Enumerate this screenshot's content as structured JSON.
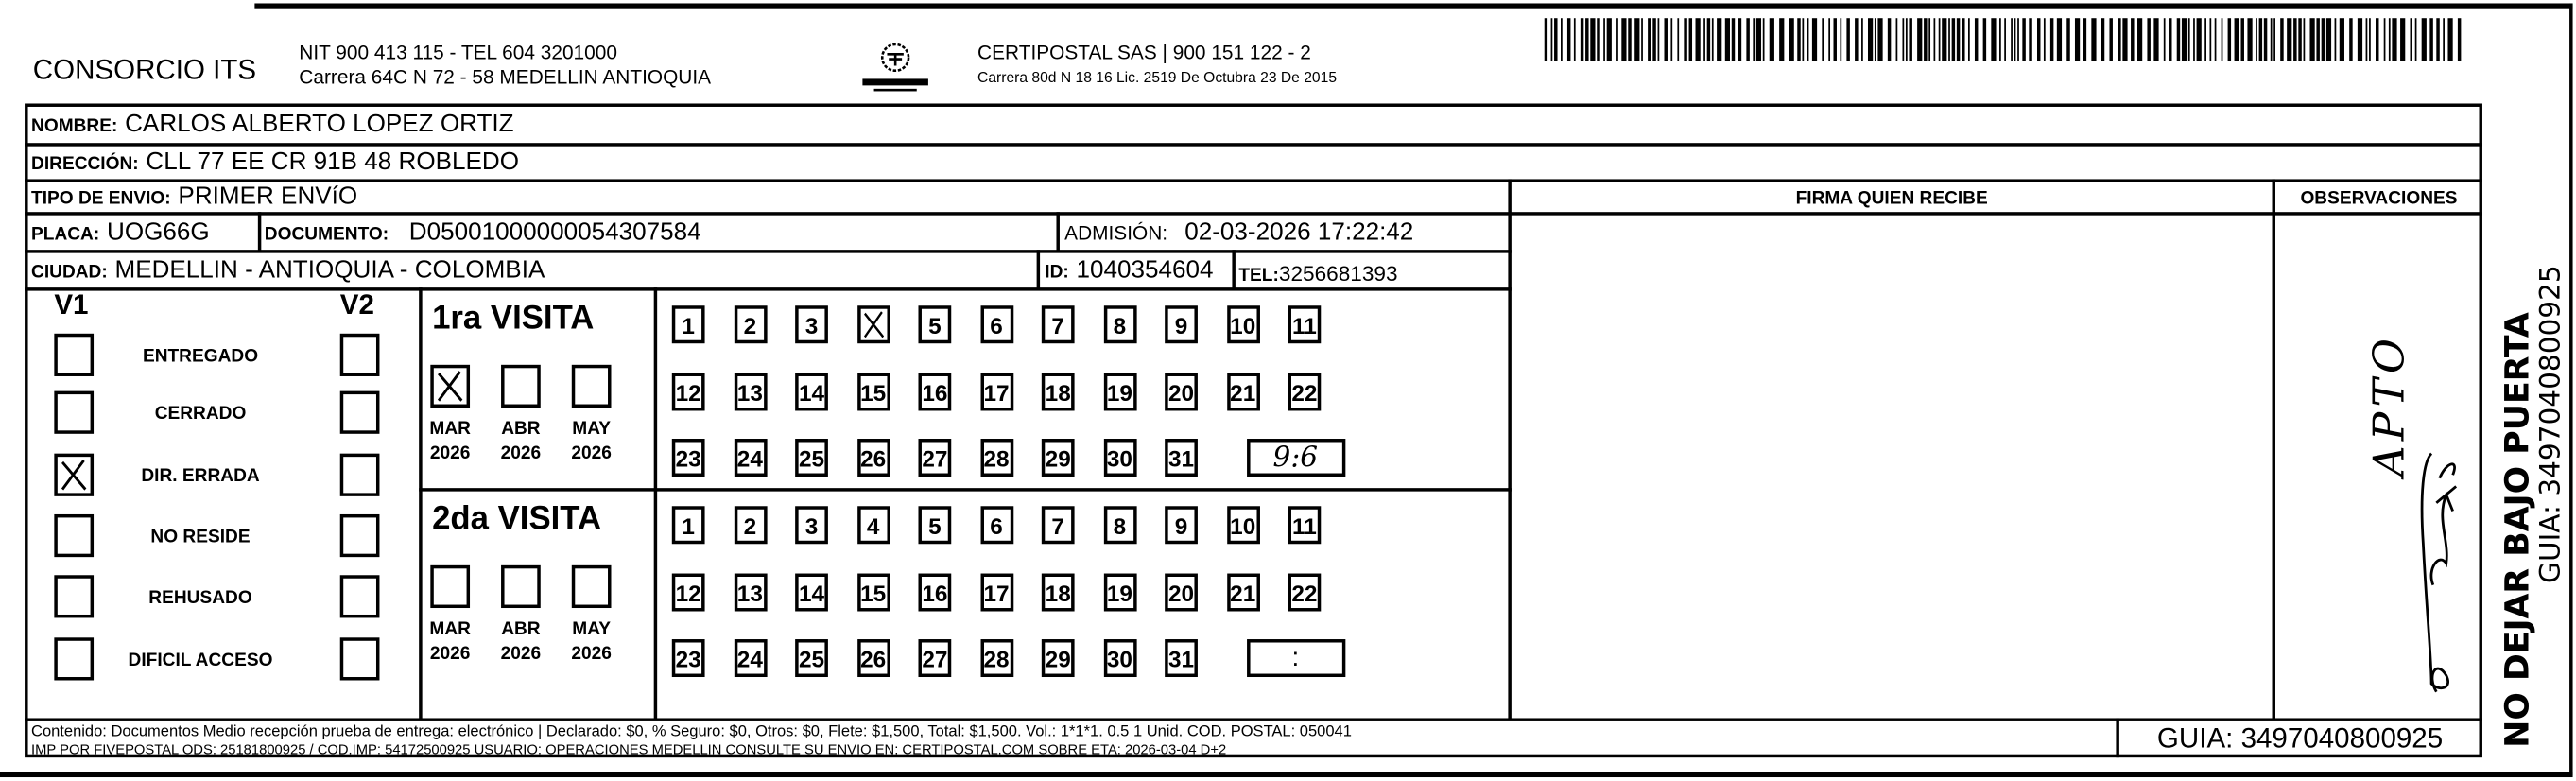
{
  "header": {
    "company": "CONSORCIO ITS",
    "company_line1": "NIT 900 413 115 - TEL 604 3201000",
    "company_line2": "Carrera 64C N 72 - 58 MEDELLIN ANTIOQUIA",
    "logo_text": "CERTIPOSTAL",
    "carrier_line1": "CERTIPOSTAL SAS | 900 151 122 - 2",
    "carrier_line2": "Carrera 80d N 18 16  Lic. 2519 De Octubra 23 De 2015"
  },
  "fields": {
    "nombre_label": "NOMBRE:",
    "nombre": "CARLOS ALBERTO LOPEZ ORTIZ",
    "direccion_label": "DIRECCIÓN:",
    "direccion": "CLL 77 EE CR 91B 48 ROBLEDO",
    "tipo_label": "TIPO DE ENVIO:",
    "tipo": "PRIMER ENVíO",
    "placa_label": "PLACA:",
    "placa": "UOG66G",
    "documento_label": "DOCUMENTO:",
    "documento": "D05001000000054307584",
    "admision_label": "ADMISIÓN:",
    "admision": "02-03-2026 17:22:42",
    "ciudad_label": "CIUDAD:",
    "ciudad": "MEDELLIN - ANTIOQUIA - COLOMBIA",
    "id_label": "ID:",
    "id": "1040354604",
    "tel_label": "TEL:",
    "tel": "3256681393"
  },
  "columns": {
    "firma": "FIRMA QUIEN RECIBE",
    "observaciones": "OBSERVACIONES"
  },
  "status": {
    "v1": "V1",
    "v2": "V2",
    "items": [
      {
        "label": "ENTREGADO",
        "v1": false,
        "v2": false
      },
      {
        "label": "CERRADO",
        "v1": false,
        "v2": false
      },
      {
        "label": "DIR. ERRADA",
        "v1": true,
        "v2": false
      },
      {
        "label": "NO RESIDE",
        "v1": false,
        "v2": false
      },
      {
        "label": "REHUSADO",
        "v1": false,
        "v2": false
      },
      {
        "label": "DIFICIL ACCESO",
        "v1": false,
        "v2": false
      }
    ]
  },
  "visits": [
    {
      "title": "1ra VISITA",
      "months": [
        {
          "month": "MAR",
          "year": "2026",
          "checked": true
        },
        {
          "month": "ABR",
          "year": "2026",
          "checked": false
        },
        {
          "month": "MAY",
          "year": "2026",
          "checked": false
        }
      ],
      "days": [
        "1",
        "2",
        "3",
        "4",
        "5",
        "6",
        "7",
        "8",
        "9",
        "10",
        "11",
        "12",
        "13",
        "14",
        "15",
        "16",
        "17",
        "18",
        "19",
        "20",
        "21",
        "22",
        "23",
        "24",
        "25",
        "26",
        "27",
        "28",
        "29",
        "30",
        "31"
      ],
      "checked_day": "4",
      "time": "9:6"
    },
    {
      "title": "2da VISITA",
      "months": [
        {
          "month": "MAR",
          "year": "2026",
          "checked": false
        },
        {
          "month": "ABR",
          "year": "2026",
          "checked": false
        },
        {
          "month": "MAY",
          "year": "2026",
          "checked": false
        }
      ],
      "days": [
        "1",
        "2",
        "3",
        "4",
        "5",
        "6",
        "7",
        "8",
        "9",
        "10",
        "11",
        "12",
        "13",
        "14",
        "15",
        "16",
        "17",
        "18",
        "19",
        "20",
        "21",
        "22",
        "23",
        "24",
        "25",
        "26",
        "27",
        "28",
        "29",
        "30",
        "31"
      ],
      "checked_day": null,
      "time": ":"
    }
  ],
  "observaciones_handwritten": "APTO",
  "footer": {
    "line1": "Contenido: Documentos Medio recepción prueba de entrega: electrónico | Declarado: $0, % Seguro: $0, Otros: $0, Flete: $1,500, Total: $1,500. Vol.: 1*1*1. 0.5  1 Unid. COD. POSTAL: 050041",
    "line2": "IMP POR FIVEPOSTAL ODS: 25181800925 / COD.IMP: 54172500925 USUARIO: OPERACIONES MEDELLIN CONSULTE SU ENVIO EN: CERTIPOSTAL.COM SOBRE ETA: 2026-03-04 D+2",
    "guia": "GUIA: 3497040800925"
  },
  "side": {
    "warning": "NO DEJAR BAJO PUERTA",
    "guia": "GUIA: 3497040800925"
  }
}
